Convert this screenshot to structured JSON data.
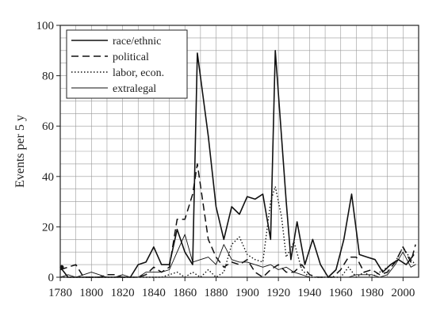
{
  "chart_data": {
    "type": "line",
    "title": "",
    "xlabel": "",
    "ylabel": "Events per 5 y",
    "xlim": [
      1780,
      2010
    ],
    "ylim": [
      0,
      100
    ],
    "x_ticks": [
      1780,
      1800,
      1820,
      1840,
      1860,
      1880,
      1900,
      1920,
      1940,
      1960,
      1980,
      2000
    ],
    "y_ticks": [
      0,
      20,
      40,
      60,
      80,
      100
    ],
    "grid": true,
    "legend_position": "top-left",
    "series": [
      {
        "name": "race/ethnic",
        "style": "solid",
        "points": [
          [
            1780,
            4
          ],
          [
            1785,
            0
          ],
          [
            1790,
            0
          ],
          [
            1795,
            0
          ],
          [
            1800,
            0
          ],
          [
            1805,
            0
          ],
          [
            1810,
            0
          ],
          [
            1815,
            0
          ],
          [
            1820,
            0
          ],
          [
            1825,
            0
          ],
          [
            1830,
            5
          ],
          [
            1835,
            6
          ],
          [
            1840,
            12
          ],
          [
            1845,
            5
          ],
          [
            1850,
            5
          ],
          [
            1855,
            19
          ],
          [
            1860,
            10
          ],
          [
            1865,
            5
          ],
          [
            1868,
            89
          ],
          [
            1875,
            56
          ],
          [
            1880,
            28
          ],
          [
            1885,
            15
          ],
          [
            1890,
            28
          ],
          [
            1895,
            25
          ],
          [
            1900,
            32
          ],
          [
            1905,
            31
          ],
          [
            1910,
            33
          ],
          [
            1915,
            15
          ],
          [
            1918,
            90
          ],
          [
            1925,
            30
          ],
          [
            1928,
            7
          ],
          [
            1932,
            22
          ],
          [
            1937,
            5
          ],
          [
            1942,
            15
          ],
          [
            1947,
            5
          ],
          [
            1952,
            0
          ],
          [
            1957,
            3
          ],
          [
            1962,
            15
          ],
          [
            1967,
            33
          ],
          [
            1972,
            9
          ],
          [
            1977,
            8
          ],
          [
            1982,
            7
          ],
          [
            1987,
            2
          ],
          [
            1992,
            5
          ],
          [
            1997,
            7
          ],
          [
            2002,
            5
          ],
          [
            2007,
            9
          ]
        ]
      },
      {
        "name": "political",
        "style": "dashed",
        "points": [
          [
            1780,
            3
          ],
          [
            1785,
            4
          ],
          [
            1790,
            5
          ],
          [
            1795,
            0
          ],
          [
            1800,
            0
          ],
          [
            1805,
            0
          ],
          [
            1810,
            1
          ],
          [
            1815,
            1
          ],
          [
            1820,
            0
          ],
          [
            1825,
            0
          ],
          [
            1830,
            0
          ],
          [
            1835,
            1
          ],
          [
            1840,
            4
          ],
          [
            1845,
            2
          ],
          [
            1850,
            4
          ],
          [
            1855,
            23
          ],
          [
            1860,
            23
          ],
          [
            1865,
            33
          ],
          [
            1868,
            45
          ],
          [
            1875,
            15
          ],
          [
            1880,
            8
          ],
          [
            1885,
            4
          ],
          [
            1890,
            6
          ],
          [
            1895,
            5
          ],
          [
            1900,
            7
          ],
          [
            1905,
            2
          ],
          [
            1910,
            0
          ],
          [
            1915,
            3
          ],
          [
            1920,
            5
          ],
          [
            1925,
            2
          ],
          [
            1930,
            2
          ],
          [
            1935,
            5
          ],
          [
            1940,
            1
          ],
          [
            1945,
            0
          ],
          [
            1950,
            0
          ],
          [
            1955,
            0
          ],
          [
            1960,
            3
          ],
          [
            1965,
            8
          ],
          [
            1970,
            8
          ],
          [
            1975,
            2
          ],
          [
            1980,
            3
          ],
          [
            1985,
            1
          ],
          [
            1990,
            2
          ],
          [
            1995,
            6
          ],
          [
            2000,
            12
          ],
          [
            2005,
            6
          ],
          [
            2008,
            13
          ]
        ]
      },
      {
        "name": "labor, econ.",
        "style": "dotted",
        "points": [
          [
            1780,
            0
          ],
          [
            1800,
            0
          ],
          [
            1820,
            0
          ],
          [
            1835,
            0
          ],
          [
            1845,
            0
          ],
          [
            1855,
            2
          ],
          [
            1860,
            0
          ],
          [
            1865,
            2
          ],
          [
            1870,
            0
          ],
          [
            1875,
            3
          ],
          [
            1880,
            0
          ],
          [
            1885,
            2
          ],
          [
            1890,
            13
          ],
          [
            1895,
            16
          ],
          [
            1900,
            9
          ],
          [
            1905,
            7
          ],
          [
            1910,
            6
          ],
          [
            1915,
            30
          ],
          [
            1918,
            36
          ],
          [
            1922,
            24
          ],
          [
            1925,
            8
          ],
          [
            1930,
            14
          ],
          [
            1935,
            3
          ],
          [
            1940,
            0
          ],
          [
            1950,
            0
          ],
          [
            1960,
            0
          ],
          [
            1965,
            4
          ],
          [
            1970,
            0
          ],
          [
            1975,
            2
          ],
          [
            1980,
            0
          ],
          [
            1985,
            2
          ],
          [
            1990,
            4
          ],
          [
            1995,
            6
          ],
          [
            2000,
            12
          ],
          [
            2005,
            7
          ],
          [
            2008,
            5
          ]
        ]
      },
      {
        "name": "extralegal",
        "style": "solid-thin",
        "points": [
          [
            1780,
            0
          ],
          [
            1785,
            1
          ],
          [
            1790,
            0
          ],
          [
            1795,
            1
          ],
          [
            1800,
            2
          ],
          [
            1805,
            1
          ],
          [
            1810,
            0
          ],
          [
            1815,
            0
          ],
          [
            1820,
            1
          ],
          [
            1825,
            0
          ],
          [
            1830,
            0
          ],
          [
            1835,
            2
          ],
          [
            1840,
            2
          ],
          [
            1845,
            2
          ],
          [
            1850,
            3
          ],
          [
            1855,
            10
          ],
          [
            1860,
            17
          ],
          [
            1865,
            6
          ],
          [
            1870,
            7
          ],
          [
            1875,
            8
          ],
          [
            1880,
            5
          ],
          [
            1885,
            13
          ],
          [
            1890,
            7
          ],
          [
            1895,
            6
          ],
          [
            1900,
            6
          ],
          [
            1905,
            5
          ],
          [
            1910,
            4
          ],
          [
            1915,
            5
          ],
          [
            1920,
            3
          ],
          [
            1925,
            4
          ],
          [
            1930,
            2
          ],
          [
            1935,
            1
          ],
          [
            1940,
            0
          ],
          [
            1945,
            0
          ],
          [
            1950,
            0
          ],
          [
            1955,
            0
          ],
          [
            1960,
            0
          ],
          [
            1965,
            0
          ],
          [
            1970,
            1
          ],
          [
            1975,
            1
          ],
          [
            1980,
            1
          ],
          [
            1985,
            0
          ],
          [
            1990,
            1
          ],
          [
            1995,
            5
          ],
          [
            2000,
            10
          ],
          [
            2005,
            4
          ],
          [
            2008,
            5
          ]
        ]
      }
    ],
    "marker": {
      "x": 1781,
      "y": 4
    }
  }
}
